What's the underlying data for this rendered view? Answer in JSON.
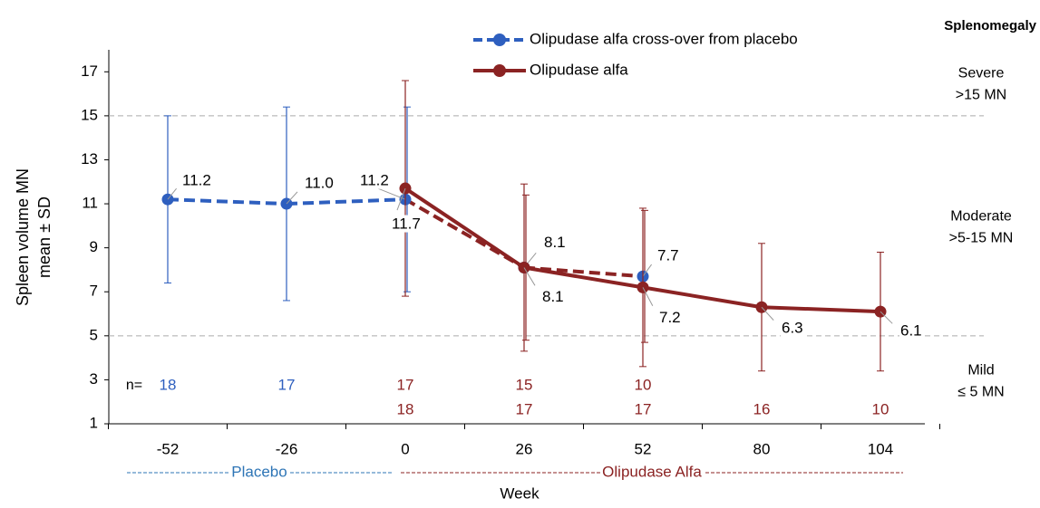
{
  "chart_data": {
    "type": "line",
    "title": "Splenomegaly",
    "x_label": "Week",
    "y_label": [
      "Spleen volume MN",
      "mean ± SD"
    ],
    "categories": [
      "-52",
      "-26",
      "0",
      "26",
      "52",
      "80",
      "104"
    ],
    "ylim": [
      1,
      18
    ],
    "yticks": [
      1,
      3,
      5,
      7,
      9,
      11,
      13,
      15,
      17
    ],
    "reference_lines": [
      15,
      5
    ],
    "zones": [
      {
        "label": [
          "Severe",
          ">15 MN"
        ],
        "range": [
          15,
          18
        ]
      },
      {
        "label": [
          "Moderate",
          ">5-15 MN"
        ],
        "range": [
          5,
          15
        ]
      },
      {
        "label": [
          "Mild",
          "≤ 5 MN"
        ],
        "range": [
          1,
          5
        ]
      }
    ],
    "n_label": "n=",
    "periods": [
      {
        "label": "Placebo",
        "color": "#2e75b6"
      },
      {
        "label": "Olipudase Alfa",
        "color": "#8b2323"
      }
    ],
    "series": [
      {
        "name": "Olipudase alfa cross-over from placebo",
        "color": "#2e5fbf",
        "dashed": true,
        "line_colors": [
          "#2e5fbf",
          "#2e5fbf",
          "#8b2323",
          "#8b2323",
          "#8b2323",
          "#8b2323",
          "#8b2323"
        ],
        "values": [
          11.2,
          11.0,
          11.2,
          8.1,
          7.7,
          null,
          null
        ],
        "value_labels": [
          "11.2",
          "11.0",
          "11.2",
          "8.1",
          "7.7",
          null,
          null
        ],
        "errors": [
          3.8,
          4.4,
          4.2,
          3.3,
          3.0,
          null,
          null
        ],
        "n": [
          18,
          17,
          17,
          15,
          10,
          null,
          null
        ]
      },
      {
        "name": "Olipudase alfa",
        "color": "#8b2323",
        "dashed": false,
        "line_colors": [
          "#8b2323",
          "#8b2323",
          "#8b2323",
          "#8b2323",
          "#8b2323",
          "#8b2323",
          "#8b2323"
        ],
        "values": [
          null,
          null,
          11.7,
          8.1,
          7.2,
          6.3,
          6.1
        ],
        "value_labels": [
          null,
          null,
          "11.7",
          "8.1",
          "7.2",
          "6.3",
          "6.1"
        ],
        "errors": [
          null,
          null,
          4.9,
          3.8,
          3.6,
          2.9,
          2.7
        ],
        "n": [
          null,
          null,
          18,
          17,
          17,
          16,
          10
        ]
      }
    ]
  }
}
